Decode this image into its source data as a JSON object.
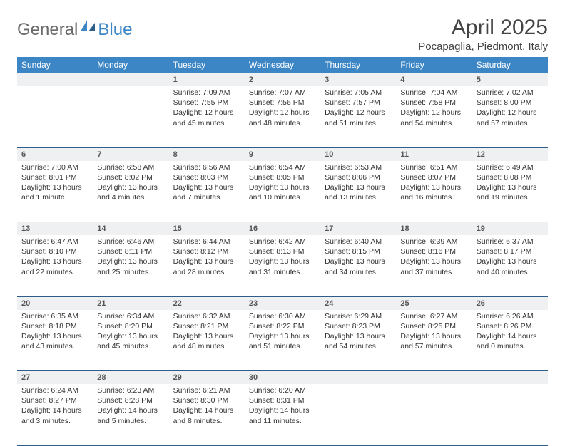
{
  "logo": {
    "word1": "General",
    "word2": "Blue"
  },
  "title": "April 2025",
  "subtitle": "Pocapaglia, Piedmont, Italy",
  "header_bg": "#3d86c6",
  "daynum_bg": "#eef0f2",
  "rule_color": "#2f5d8a",
  "text_color": "#333333",
  "title_color": "#444444",
  "logo_gray": "#6b6b6b",
  "logo_blue": "#3d86c6",
  "page_bg": "#ffffff",
  "font_body_pt": 10.5,
  "font_header_pt": 12,
  "font_title_pt": 30,
  "font_subtitle_pt": 15,
  "weekdays": [
    "Sunday",
    "Monday",
    "Tuesday",
    "Wednesday",
    "Thursday",
    "Friday",
    "Saturday"
  ],
  "weeks": [
    {
      "nums": [
        "",
        "",
        "1",
        "2",
        "3",
        "4",
        "5"
      ],
      "cells": [
        {},
        {},
        {
          "sunrise": "Sunrise: 7:09 AM",
          "sunset": "Sunset: 7:55 PM",
          "daylight": "Daylight: 12 hours and 45 minutes."
        },
        {
          "sunrise": "Sunrise: 7:07 AM",
          "sunset": "Sunset: 7:56 PM",
          "daylight": "Daylight: 12 hours and 48 minutes."
        },
        {
          "sunrise": "Sunrise: 7:05 AM",
          "sunset": "Sunset: 7:57 PM",
          "daylight": "Daylight: 12 hours and 51 minutes."
        },
        {
          "sunrise": "Sunrise: 7:04 AM",
          "sunset": "Sunset: 7:58 PM",
          "daylight": "Daylight: 12 hours and 54 minutes."
        },
        {
          "sunrise": "Sunrise: 7:02 AM",
          "sunset": "Sunset: 8:00 PM",
          "daylight": "Daylight: 12 hours and 57 minutes."
        }
      ]
    },
    {
      "nums": [
        "6",
        "7",
        "8",
        "9",
        "10",
        "11",
        "12"
      ],
      "cells": [
        {
          "sunrise": "Sunrise: 7:00 AM",
          "sunset": "Sunset: 8:01 PM",
          "daylight": "Daylight: 13 hours and 1 minute."
        },
        {
          "sunrise": "Sunrise: 6:58 AM",
          "sunset": "Sunset: 8:02 PM",
          "daylight": "Daylight: 13 hours and 4 minutes."
        },
        {
          "sunrise": "Sunrise: 6:56 AM",
          "sunset": "Sunset: 8:03 PM",
          "daylight": "Daylight: 13 hours and 7 minutes."
        },
        {
          "sunrise": "Sunrise: 6:54 AM",
          "sunset": "Sunset: 8:05 PM",
          "daylight": "Daylight: 13 hours and 10 minutes."
        },
        {
          "sunrise": "Sunrise: 6:53 AM",
          "sunset": "Sunset: 8:06 PM",
          "daylight": "Daylight: 13 hours and 13 minutes."
        },
        {
          "sunrise": "Sunrise: 6:51 AM",
          "sunset": "Sunset: 8:07 PM",
          "daylight": "Daylight: 13 hours and 16 minutes."
        },
        {
          "sunrise": "Sunrise: 6:49 AM",
          "sunset": "Sunset: 8:08 PM",
          "daylight": "Daylight: 13 hours and 19 minutes."
        }
      ]
    },
    {
      "nums": [
        "13",
        "14",
        "15",
        "16",
        "17",
        "18",
        "19"
      ],
      "cells": [
        {
          "sunrise": "Sunrise: 6:47 AM",
          "sunset": "Sunset: 8:10 PM",
          "daylight": "Daylight: 13 hours and 22 minutes."
        },
        {
          "sunrise": "Sunrise: 6:46 AM",
          "sunset": "Sunset: 8:11 PM",
          "daylight": "Daylight: 13 hours and 25 minutes."
        },
        {
          "sunrise": "Sunrise: 6:44 AM",
          "sunset": "Sunset: 8:12 PM",
          "daylight": "Daylight: 13 hours and 28 minutes."
        },
        {
          "sunrise": "Sunrise: 6:42 AM",
          "sunset": "Sunset: 8:13 PM",
          "daylight": "Daylight: 13 hours and 31 minutes."
        },
        {
          "sunrise": "Sunrise: 6:40 AM",
          "sunset": "Sunset: 8:15 PM",
          "daylight": "Daylight: 13 hours and 34 minutes."
        },
        {
          "sunrise": "Sunrise: 6:39 AM",
          "sunset": "Sunset: 8:16 PM",
          "daylight": "Daylight: 13 hours and 37 minutes."
        },
        {
          "sunrise": "Sunrise: 6:37 AM",
          "sunset": "Sunset: 8:17 PM",
          "daylight": "Daylight: 13 hours and 40 minutes."
        }
      ]
    },
    {
      "nums": [
        "20",
        "21",
        "22",
        "23",
        "24",
        "25",
        "26"
      ],
      "cells": [
        {
          "sunrise": "Sunrise: 6:35 AM",
          "sunset": "Sunset: 8:18 PM",
          "daylight": "Daylight: 13 hours and 43 minutes."
        },
        {
          "sunrise": "Sunrise: 6:34 AM",
          "sunset": "Sunset: 8:20 PM",
          "daylight": "Daylight: 13 hours and 45 minutes."
        },
        {
          "sunrise": "Sunrise: 6:32 AM",
          "sunset": "Sunset: 8:21 PM",
          "daylight": "Daylight: 13 hours and 48 minutes."
        },
        {
          "sunrise": "Sunrise: 6:30 AM",
          "sunset": "Sunset: 8:22 PM",
          "daylight": "Daylight: 13 hours and 51 minutes."
        },
        {
          "sunrise": "Sunrise: 6:29 AM",
          "sunset": "Sunset: 8:23 PM",
          "daylight": "Daylight: 13 hours and 54 minutes."
        },
        {
          "sunrise": "Sunrise: 6:27 AM",
          "sunset": "Sunset: 8:25 PM",
          "daylight": "Daylight: 13 hours and 57 minutes."
        },
        {
          "sunrise": "Sunrise: 6:26 AM",
          "sunset": "Sunset: 8:26 PM",
          "daylight": "Daylight: 14 hours and 0 minutes."
        }
      ]
    },
    {
      "nums": [
        "27",
        "28",
        "29",
        "30",
        "",
        "",
        ""
      ],
      "cells": [
        {
          "sunrise": "Sunrise: 6:24 AM",
          "sunset": "Sunset: 8:27 PM",
          "daylight": "Daylight: 14 hours and 3 minutes."
        },
        {
          "sunrise": "Sunrise: 6:23 AM",
          "sunset": "Sunset: 8:28 PM",
          "daylight": "Daylight: 14 hours and 5 minutes."
        },
        {
          "sunrise": "Sunrise: 6:21 AM",
          "sunset": "Sunset: 8:30 PM",
          "daylight": "Daylight: 14 hours and 8 minutes."
        },
        {
          "sunrise": "Sunrise: 6:20 AM",
          "sunset": "Sunset: 8:31 PM",
          "daylight": "Daylight: 14 hours and 11 minutes."
        },
        {},
        {},
        {}
      ]
    }
  ]
}
